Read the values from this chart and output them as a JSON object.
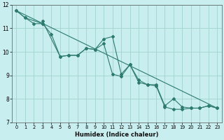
{
  "xlabel": "Humidex (Indice chaleur)",
  "bg_color": "#c8eef0",
  "grid_color": "#a0d4cc",
  "line_color": "#2d7a6e",
  "xlim": [
    -0.5,
    23.5
  ],
  "ylim": [
    7,
    12
  ],
  "xticks": [
    0,
    1,
    2,
    3,
    4,
    5,
    6,
    7,
    8,
    9,
    10,
    11,
    12,
    13,
    14,
    15,
    16,
    17,
    18,
    19,
    20,
    21,
    22,
    23
  ],
  "yticks": [
    7,
    8,
    9,
    10,
    11,
    12
  ],
  "series1_x": [
    0,
    1,
    3,
    3,
    5,
    6,
    7,
    8,
    9,
    10,
    11,
    12,
    13,
    14,
    15,
    16,
    17,
    18,
    19,
    20,
    21,
    22,
    23
  ],
  "series1_y": [
    11.75,
    11.45,
    11.2,
    11.3,
    9.8,
    9.85,
    9.85,
    10.15,
    10.1,
    10.35,
    9.05,
    8.95,
    9.45,
    8.8,
    8.6,
    8.6,
    7.7,
    8.0,
    7.65,
    7.6,
    7.6,
    7.7,
    7.6
  ],
  "series2_x": [
    0,
    1,
    2,
    3,
    4,
    5,
    6,
    7,
    8,
    9,
    10,
    11,
    12,
    13,
    14,
    15,
    16,
    17,
    18,
    19,
    20,
    21,
    22,
    23
  ],
  "series2_y": [
    11.75,
    11.45,
    11.2,
    11.2,
    10.75,
    9.8,
    9.85,
    9.85,
    10.15,
    10.1,
    10.55,
    10.65,
    9.05,
    9.45,
    8.7,
    8.6,
    8.55,
    7.65,
    7.55,
    7.55,
    7.6,
    7.6,
    7.7,
    7.6
  ],
  "series3_x": [
    0,
    23
  ],
  "series3_y": [
    11.75,
    7.6
  ]
}
